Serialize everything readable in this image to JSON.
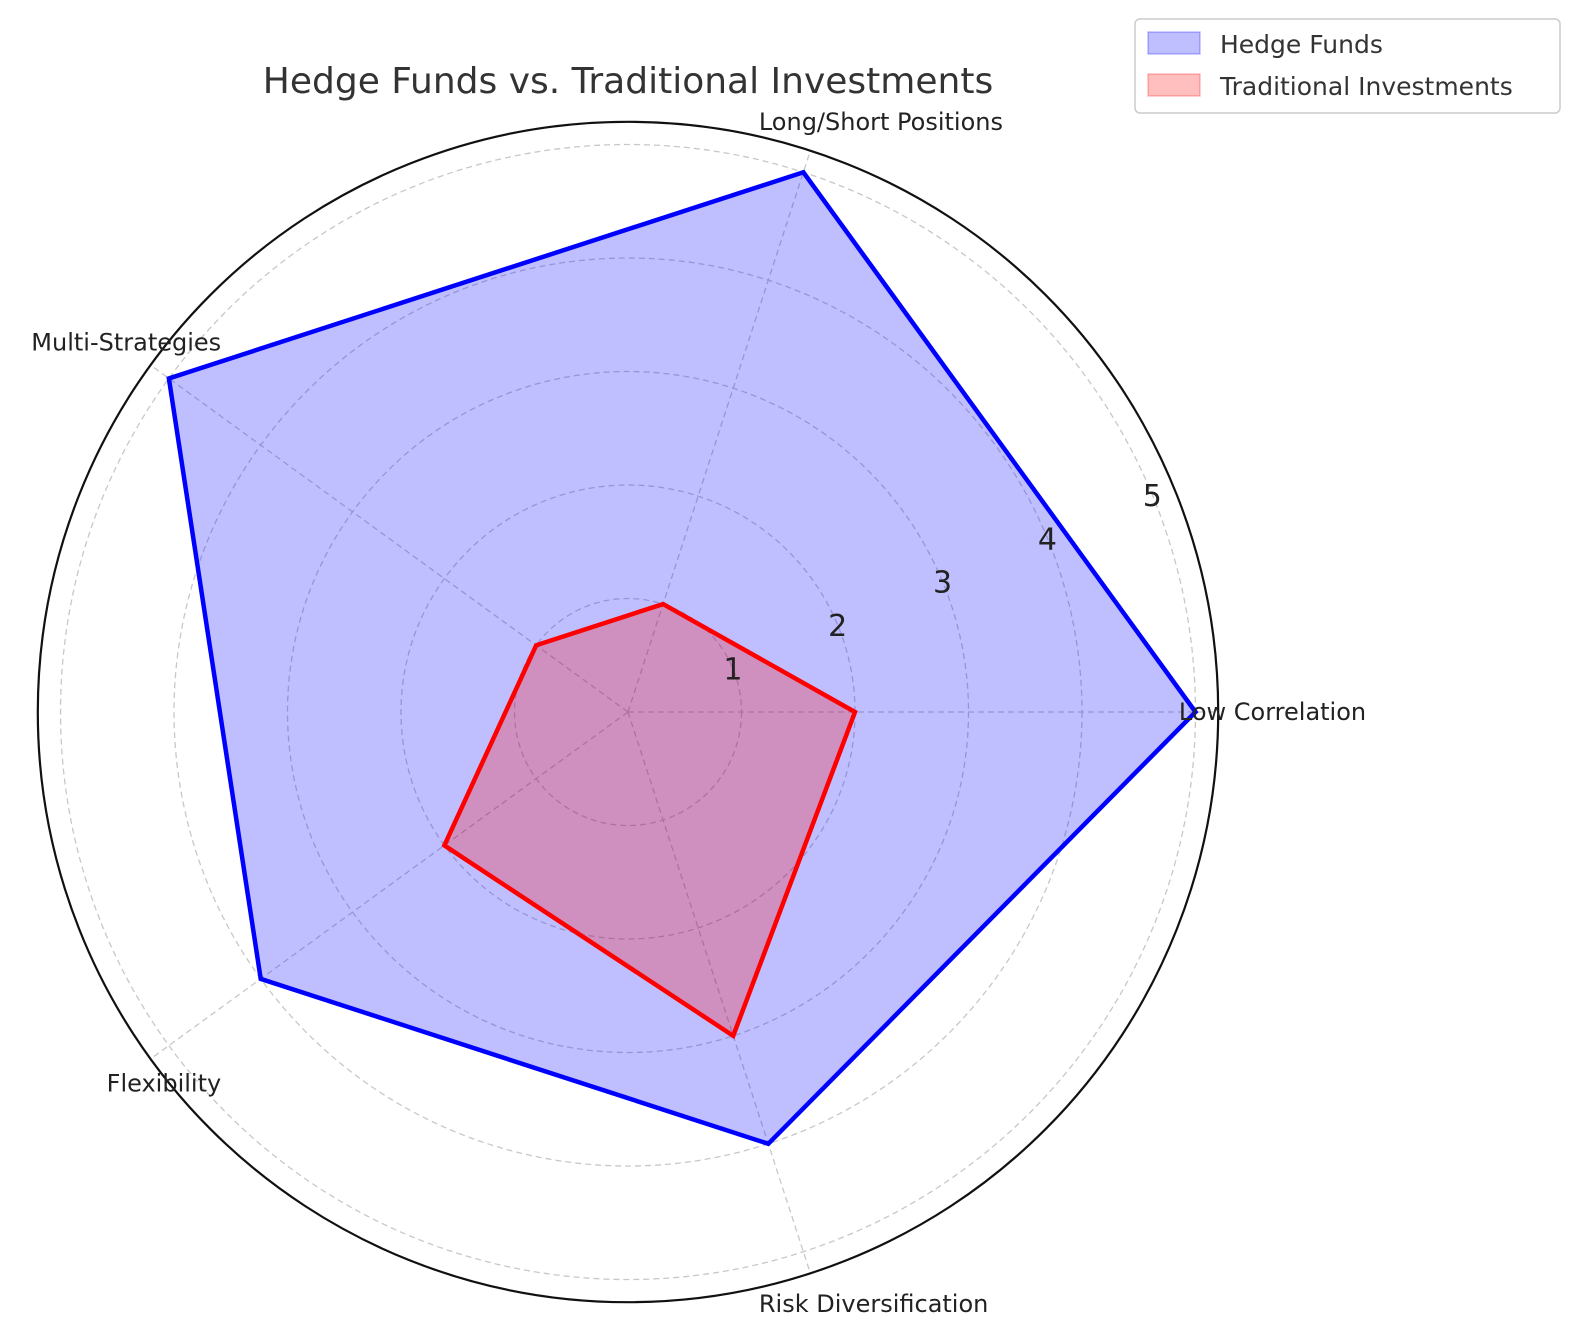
{
  "chart_data": {
    "type": "radar",
    "title": "Hedge Funds vs. Traditional Investments",
    "categories": [
      "Low Correlation",
      "Long/Short Positions",
      "Multi-Strategies",
      "Flexibility",
      "Risk Diversification"
    ],
    "radial_ticks": [
      "1",
      "2",
      "3",
      "4",
      "5"
    ],
    "rlim": [
      0,
      5.2
    ],
    "grid": true,
    "legend_position": "top-right",
    "series": [
      {
        "name": "Hedge Funds",
        "values": [
          5,
          5,
          5,
          4,
          4
        ],
        "color": "#0000ff",
        "fill": "#0000ff"
      },
      {
        "name": "Traditional Investments",
        "values": [
          2,
          1,
          1,
          2,
          3
        ],
        "color": "#ff0000",
        "fill": "#ff0000"
      }
    ]
  }
}
